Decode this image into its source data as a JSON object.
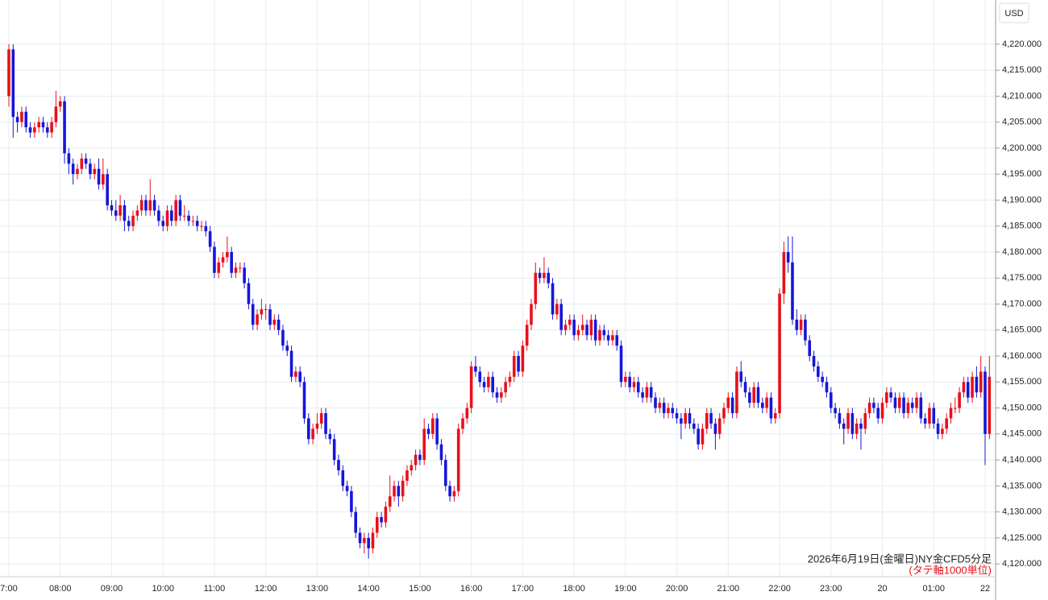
{
  "chart_data": {
    "type": "candlestick",
    "currency": "USD",
    "annotation": "2026年6月19日(金曜日)NY金CFD5分足",
    "annotation_unit": "(タテ軸1000単位)",
    "up_color": "#e8101a",
    "down_color": "#1616d8",
    "grid": true,
    "ylim": [
      4117.7,
      4228.5
    ],
    "yticks": [
      {
        "value": 4120,
        "label": "4,120.000"
      },
      {
        "value": 4125,
        "label": "4,125.000"
      },
      {
        "value": 4130,
        "label": "4,130.000"
      },
      {
        "value": 4135,
        "label": "4,135.000"
      },
      {
        "value": 4140,
        "label": "4,140.000"
      },
      {
        "value": 4145,
        "label": "4,145.000"
      },
      {
        "value": 4150,
        "label": "4,150.000"
      },
      {
        "value": 4155,
        "label": "4,155.000"
      },
      {
        "value": 4160,
        "label": "4,160.000"
      },
      {
        "value": 4165,
        "label": "4,165.000"
      },
      {
        "value": 4170,
        "label": "4,170.000"
      },
      {
        "value": 4175,
        "label": "4,175.000"
      },
      {
        "value": 4180,
        "label": "4,180.000"
      },
      {
        "value": 4185,
        "label": "4,185.000"
      },
      {
        "value": 4190,
        "label": "4,190.000"
      },
      {
        "value": 4195,
        "label": "4,195.000"
      },
      {
        "value": 4200,
        "label": "4,200.000"
      },
      {
        "value": 4205,
        "label": "4,205.000"
      },
      {
        "value": 4210,
        "label": "4,210.000"
      },
      {
        "value": 4215,
        "label": "4,215.000"
      },
      {
        "value": 4220,
        "label": "4,220.000"
      }
    ],
    "xticks": [
      {
        "value": 0,
        "label": "7:00"
      },
      {
        "value": 12,
        "label": "08:00"
      },
      {
        "value": 24,
        "label": "09:00"
      },
      {
        "value": 36,
        "label": "10:00"
      },
      {
        "value": 48,
        "label": "11:00"
      },
      {
        "value": 60,
        "label": "12:00"
      },
      {
        "value": 72,
        "label": "13:00"
      },
      {
        "value": 84,
        "label": "14:00"
      },
      {
        "value": 96,
        "label": "15:00"
      },
      {
        "value": 108,
        "label": "16:00"
      },
      {
        "value": 120,
        "label": "17:00"
      },
      {
        "value": 132,
        "label": "18:00"
      },
      {
        "value": 144,
        "label": "19:00"
      },
      {
        "value": 156,
        "label": "20:00"
      },
      {
        "value": 168,
        "label": "21:00"
      },
      {
        "value": 180,
        "label": "22:00"
      },
      {
        "value": 192,
        "label": "23:00"
      },
      {
        "value": 204,
        "label": "20"
      },
      {
        "value": 216,
        "label": "01:00"
      },
      {
        "value": 228,
        "label": "22"
      }
    ],
    "ohlc": [
      [
        4210,
        4220,
        4208,
        4219
      ],
      [
        4219,
        4220,
        4202,
        4206
      ],
      [
        4206,
        4207,
        4203,
        4205
      ],
      [
        4205,
        4208,
        4204,
        4207
      ],
      [
        4207,
        4208,
        4203,
        4204
      ],
      [
        4204,
        4205,
        4202,
        4203
      ],
      [
        4203,
        4205,
        4202,
        4204
      ],
      [
        4204,
        4206,
        4203,
        4205
      ],
      [
        4205,
        4206,
        4203,
        4204
      ],
      [
        4204,
        4205,
        4202,
        4203
      ],
      [
        4203,
        4206,
        4202,
        4205
      ],
      [
        4205,
        4211,
        4204,
        4208
      ],
      [
        4208,
        4210,
        4207,
        4209
      ],
      [
        4209,
        4210,
        4197,
        4199
      ],
      [
        4199,
        4200,
        4195,
        4197
      ],
      [
        4197,
        4198,
        4193,
        4195
      ],
      [
        4195,
        4197,
        4194,
        4196
      ],
      [
        4196,
        4199,
        4195,
        4198
      ],
      [
        4198,
        4199,
        4196,
        4197
      ],
      [
        4197,
        4198,
        4194,
        4195
      ],
      [
        4195,
        4197,
        4194,
        4196
      ],
      [
        4196,
        4198,
        4192,
        4193
      ],
      [
        4193,
        4198,
        4192,
        4195
      ],
      [
        4195,
        4196,
        4188,
        4189
      ],
      [
        4189,
        4190,
        4187,
        4188
      ],
      [
        4188,
        4190,
        4186,
        4187
      ],
      [
        4187,
        4191,
        4186,
        4189
      ],
      [
        4189,
        4190,
        4184,
        4186
      ],
      [
        4186,
        4187,
        4184,
        4185
      ],
      [
        4185,
        4188,
        4184,
        4187
      ],
      [
        4187,
        4189,
        4186,
        4188
      ],
      [
        4188,
        4191,
        4187,
        4190
      ],
      [
        4190,
        4191,
        4187,
        4188
      ],
      [
        4188,
        4194,
        4187,
        4190
      ],
      [
        4190,
        4191,
        4187,
        4188
      ],
      [
        4188,
        4189,
        4185,
        4186
      ],
      [
        4186,
        4187,
        4184,
        4185
      ],
      [
        4185,
        4189,
        4184,
        4188
      ],
      [
        4188,
        4189,
        4185,
        4186
      ],
      [
        4186,
        4191,
        4185,
        4190
      ],
      [
        4190,
        4191,
        4186,
        4187
      ],
      [
        4187,
        4189,
        4186,
        4187
      ],
      [
        4187,
        4188,
        4185,
        4186
      ],
      [
        4186,
        4187,
        4185,
        4186
      ],
      [
        4186,
        4187,
        4184,
        4185
      ],
      [
        4185,
        4186,
        4184,
        4185
      ],
      [
        4185,
        4186,
        4183,
        4184
      ],
      [
        4184,
        4185,
        4180,
        4181
      ],
      [
        4181,
        4182,
        4175,
        4176
      ],
      [
        4176,
        4179,
        4175,
        4178
      ],
      [
        4178,
        4180,
        4177,
        4179
      ],
      [
        4179,
        4183,
        4178,
        4180
      ],
      [
        4180,
        4181,
        4175,
        4176
      ],
      [
        4176,
        4178,
        4175,
        4177
      ],
      [
        4177,
        4178,
        4176,
        4177
      ],
      [
        4177,
        4178,
        4173,
        4174
      ],
      [
        4174,
        4175,
        4169,
        4170
      ],
      [
        4170,
        4171,
        4165,
        4166
      ],
      [
        4166,
        4169,
        4165,
        4168
      ],
      [
        4168,
        4171,
        4167,
        4169
      ],
      [
        4169,
        4170,
        4167,
        4169
      ],
      [
        4169,
        4170,
        4165,
        4166
      ],
      [
        4166,
        4168,
        4165,
        4167
      ],
      [
        4167,
        4168,
        4164,
        4165
      ],
      [
        4165,
        4166,
        4161,
        4162
      ],
      [
        4162,
        4163,
        4160,
        4161
      ],
      [
        4161,
        4162,
        4155,
        4156
      ],
      [
        4156,
        4158,
        4155,
        4157
      ],
      [
        4157,
        4158,
        4154,
        4155
      ],
      [
        4155,
        4156,
        4147,
        4148
      ],
      [
        4148,
        4149,
        4143,
        4144
      ],
      [
        4144,
        4147,
        4143,
        4146
      ],
      [
        4146,
        4149,
        4145,
        4147
      ],
      [
        4147,
        4150,
        4146,
        4149
      ],
      [
        4149,
        4150,
        4144,
        4145
      ],
      [
        4145,
        4146,
        4143,
        4144
      ],
      [
        4144,
        4145,
        4139,
        4140
      ],
      [
        4140,
        4141,
        4137,
        4138
      ],
      [
        4138,
        4139,
        4134,
        4135
      ],
      [
        4135,
        4136,
        4133,
        4134
      ],
      [
        4134,
        4135,
        4129,
        4130
      ],
      [
        4130,
        4131,
        4125,
        4126
      ],
      [
        4126,
        4127,
        4123,
        4124
      ],
      [
        4124,
        4126,
        4122,
        4125
      ],
      [
        4125,
        4126,
        4121,
        4123
      ],
      [
        4123,
        4127,
        4122,
        4126
      ],
      [
        4126,
        4130,
        4125,
        4129
      ],
      [
        4129,
        4130,
        4127,
        4128
      ],
      [
        4128,
        4132,
        4127,
        4131
      ],
      [
        4131,
        4137,
        4130,
        4133
      ],
      [
        4133,
        4136,
        4132,
        4135
      ],
      [
        4135,
        4136,
        4131,
        4133
      ],
      [
        4133,
        4137,
        4132,
        4136
      ],
      [
        4136,
        4139,
        4135,
        4138
      ],
      [
        4138,
        4140,
        4137,
        4139
      ],
      [
        4139,
        4142,
        4138,
        4141
      ],
      [
        4141,
        4142,
        4139,
        4140
      ],
      [
        4140,
        4148,
        4139,
        4146
      ],
      [
        4146,
        4147,
        4144,
        4145
      ],
      [
        4145,
        4149,
        4144,
        4148
      ],
      [
        4148,
        4149,
        4142,
        4143
      ],
      [
        4143,
        4144,
        4139,
        4140
      ],
      [
        4140,
        4141,
        4134,
        4135
      ],
      [
        4135,
        4136,
        4132,
        4133
      ],
      [
        4133,
        4135,
        4132,
        4134
      ],
      [
        4134,
        4147,
        4133,
        4146
      ],
      [
        4146,
        4149,
        4145,
        4148
      ],
      [
        4148,
        4151,
        4147,
        4150
      ],
      [
        4150,
        4159,
        4149,
        4158
      ],
      [
        4158,
        4160,
        4156,
        4157
      ],
      [
        4157,
        4158,
        4154,
        4155
      ],
      [
        4155,
        4156,
        4153,
        4154
      ],
      [
        4154,
        4157,
        4153,
        4156
      ],
      [
        4156,
        4157,
        4152,
        4153
      ],
      [
        4153,
        4154,
        4151,
        4152
      ],
      [
        4152,
        4154,
        4151,
        4153
      ],
      [
        4153,
        4156,
        4152,
        4155
      ],
      [
        4155,
        4157,
        4154,
        4156
      ],
      [
        4156,
        4161,
        4155,
        4160
      ],
      [
        4160,
        4161,
        4156,
        4157
      ],
      [
        4157,
        4163,
        4156,
        4162
      ],
      [
        4162,
        4167,
        4161,
        4166
      ],
      [
        4166,
        4171,
        4165,
        4170
      ],
      [
        4170,
        4178,
        4169,
        4176
      ],
      [
        4176,
        4177,
        4174,
        4175
      ],
      [
        4175,
        4179,
        4174,
        4176
      ],
      [
        4176,
        4177,
        4173,
        4174
      ],
      [
        4174,
        4175,
        4167,
        4168
      ],
      [
        4168,
        4171,
        4167,
        4170
      ],
      [
        4170,
        4171,
        4164,
        4165
      ],
      [
        4165,
        4167,
        4164,
        4166
      ],
      [
        4166,
        4168,
        4165,
        4167
      ],
      [
        4167,
        4168,
        4163,
        4164
      ],
      [
        4164,
        4166,
        4163,
        4165
      ],
      [
        4165,
        4168,
        4164,
        4166
      ],
      [
        4166,
        4167,
        4163,
        4164
      ],
      [
        4164,
        4168,
        4163,
        4167
      ],
      [
        4167,
        4168,
        4162,
        4163
      ],
      [
        4163,
        4166,
        4162,
        4165
      ],
      [
        4165,
        4166,
        4163,
        4164
      ],
      [
        4164,
        4165,
        4162,
        4163
      ],
      [
        4163,
        4165,
        4162,
        4164
      ],
      [
        4164,
        4165,
        4161,
        4162
      ],
      [
        4162,
        4163,
        4154,
        4155
      ],
      [
        4155,
        4157,
        4154,
        4156
      ],
      [
        4156,
        4157,
        4153,
        4154
      ],
      [
        4154,
        4156,
        4153,
        4155
      ],
      [
        4155,
        4156,
        4152,
        4153
      ],
      [
        4153,
        4154,
        4151,
        4152
      ],
      [
        4152,
        4155,
        4151,
        4154
      ],
      [
        4154,
        4155,
        4151,
        4152
      ],
      [
        4152,
        4153,
        4149,
        4150
      ],
      [
        4150,
        4152,
        4149,
        4151
      ],
      [
        4151,
        4152,
        4148,
        4149
      ],
      [
        4149,
        4151,
        4148,
        4150
      ],
      [
        4150,
        4151,
        4148,
        4149
      ],
      [
        4149,
        4150,
        4147,
        4148
      ],
      [
        4148,
        4149,
        4144,
        4147
      ],
      [
        4147,
        4150,
        4146,
        4149
      ],
      [
        4149,
        4150,
        4146,
        4147
      ],
      [
        4147,
        4148,
        4145,
        4146
      ],
      [
        4146,
        4147,
        4142,
        4143
      ],
      [
        4143,
        4147,
        4142,
        4146
      ],
      [
        4146,
        4150,
        4145,
        4149
      ],
      [
        4149,
        4150,
        4146,
        4147
      ],
      [
        4147,
        4148,
        4142,
        4145
      ],
      [
        4145,
        4149,
        4144,
        4148
      ],
      [
        4148,
        4151,
        4147,
        4150
      ],
      [
        4150,
        4153,
        4149,
        4152
      ],
      [
        4152,
        4153,
        4148,
        4149
      ],
      [
        4149,
        4158,
        4148,
        4157
      ],
      [
        4157,
        4159,
        4154,
        4155
      ],
      [
        4155,
        4156,
        4152,
        4153
      ],
      [
        4153,
        4154,
        4150,
        4151
      ],
      [
        4151,
        4155,
        4150,
        4154
      ],
      [
        4154,
        4155,
        4150,
        4151
      ],
      [
        4151,
        4152,
        4149,
        4150
      ],
      [
        4150,
        4153,
        4149,
        4152
      ],
      [
        4152,
        4153,
        4147,
        4148
      ],
      [
        4148,
        4150,
        4147,
        4149
      ],
      [
        4149,
        4173,
        4148,
        4172
      ],
      [
        4172,
        4182,
        4170,
        4180
      ],
      [
        4180,
        4183,
        4176,
        4178
      ],
      [
        4178,
        4183,
        4166,
        4167
      ],
      [
        4167,
        4169,
        4164,
        4165
      ],
      [
        4165,
        4168,
        4164,
        4167
      ],
      [
        4167,
        4168,
        4162,
        4163
      ],
      [
        4163,
        4164,
        4159,
        4160
      ],
      [
        4160,
        4161,
        4157,
        4158
      ],
      [
        4158,
        4159,
        4155,
        4156
      ],
      [
        4156,
        4157,
        4154,
        4155
      ],
      [
        4155,
        4156,
        4152,
        4153
      ],
      [
        4153,
        4154,
        4149,
        4150
      ],
      [
        4150,
        4151,
        4148,
        4149
      ],
      [
        4149,
        4150,
        4146,
        4147
      ],
      [
        4147,
        4148,
        4143,
        4146
      ],
      [
        4146,
        4150,
        4145,
        4149
      ],
      [
        4149,
        4150,
        4144,
        4145
      ],
      [
        4145,
        4148,
        4144,
        4147
      ],
      [
        4147,
        4148,
        4142,
        4146
      ],
      [
        4146,
        4150,
        4145,
        4149
      ],
      [
        4149,
        4152,
        4148,
        4151
      ],
      [
        4151,
        4152,
        4149,
        4150
      ],
      [
        4150,
        4151,
        4147,
        4148
      ],
      [
        4148,
        4152,
        4147,
        4151
      ],
      [
        4151,
        4154,
        4150,
        4153
      ],
      [
        4153,
        4154,
        4151,
        4152
      ],
      [
        4152,
        4153,
        4149,
        4150
      ],
      [
        4150,
        4153,
        4149,
        4152
      ],
      [
        4152,
        4153,
        4148,
        4149
      ],
      [
        4149,
        4152,
        4148,
        4151
      ],
      [
        4151,
        4152,
        4149,
        4150
      ],
      [
        4150,
        4153,
        4149,
        4152
      ],
      [
        4152,
        4153,
        4147,
        4148
      ],
      [
        4148,
        4149,
        4146,
        4147
      ],
      [
        4147,
        4151,
        4146,
        4150
      ],
      [
        4150,
        4151,
        4146,
        4147
      ],
      [
        4147,
        4148,
        4144,
        4145
      ],
      [
        4145,
        4147,
        4144,
        4146
      ],
      [
        4146,
        4149,
        4145,
        4148
      ],
      [
        4148,
        4151,
        4147,
        4150
      ],
      [
        4150,
        4152,
        4149,
        4150
      ],
      [
        4150,
        4154,
        4149,
        4153
      ],
      [
        4153,
        4156,
        4152,
        4155
      ],
      [
        4155,
        4156,
        4151,
        4152
      ],
      [
        4152,
        4157,
        4151,
        4156
      ],
      [
        4156,
        4158,
        4152,
        4153
      ],
      [
        4153,
        4160,
        4152,
        4157
      ],
      [
        4157,
        4158,
        4139,
        4145
      ],
      [
        4145,
        4160,
        4144,
        4156
      ]
    ]
  }
}
